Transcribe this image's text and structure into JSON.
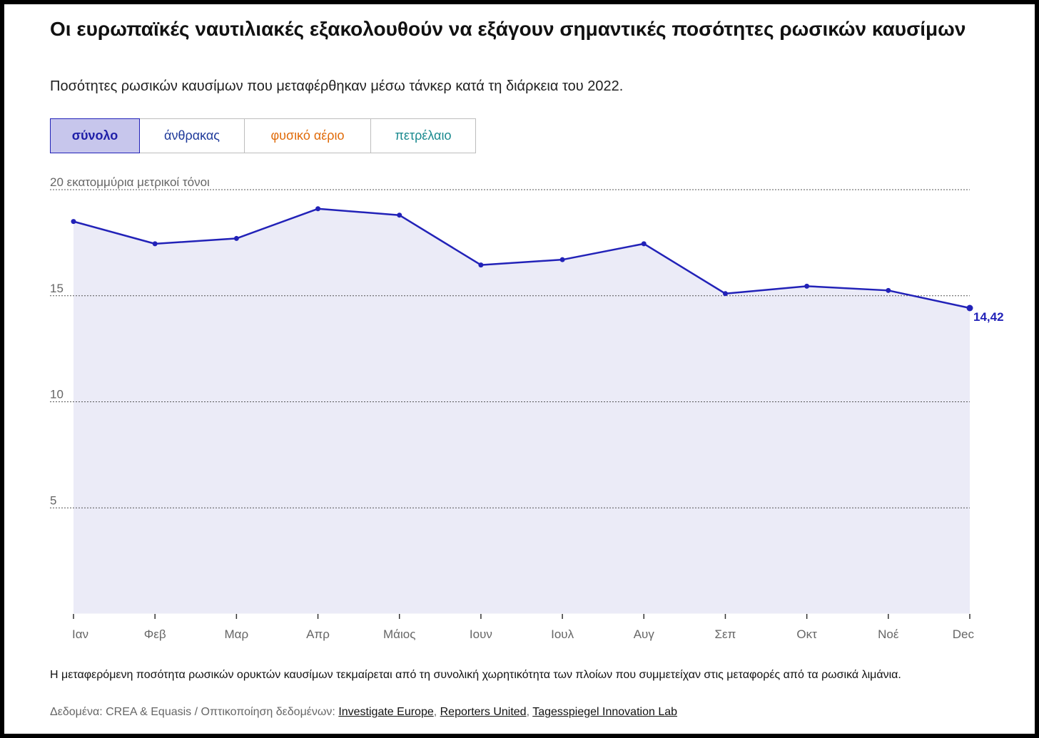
{
  "title": "Οι ευρωπαϊκές ναυτιλιακές εξακολουθούν να εξάγουν σημαντικές ποσότητες ρωσικών καυσίμων",
  "subtitle": "Ποσότητες ρωσικών καυσίμων που μεταφέρθηκαν μέσω τάνκερ κατά τη διάρκεια του 2022.",
  "tabs": [
    {
      "label": "σύνολο",
      "active": true
    },
    {
      "label": "άνθρακας",
      "active": false
    },
    {
      "label": "φυσικό αέριο",
      "active": false
    },
    {
      "label": "πετρέλαιο",
      "active": false
    }
  ],
  "colors": {
    "line": "#2222b8",
    "area": "#ebebf7",
    "gridline": "#555555",
    "tab_total": "#1f1fa8",
    "tab_coal": "#1f3a9a",
    "tab_gas": "#e06b0a",
    "tab_oil": "#1a8a8f"
  },
  "chart_data": {
    "type": "area",
    "ylabel": "20 εκατομμύρια μετρικοί τόνοι",
    "ylim": [
      0,
      20
    ],
    "yticks": [
      {
        "value": 20,
        "label": "20 εκατομμύρια μετρικοί τόνοι"
      },
      {
        "value": 15,
        "label": "15"
      },
      {
        "value": 10,
        "label": "10"
      },
      {
        "value": 5,
        "label": "5"
      }
    ],
    "grid": true,
    "categories": [
      "Ιαν",
      "Φεβ",
      "Μαρ",
      "Απρ",
      "Μάιος",
      "Ιουν",
      "Ιουλ",
      "Αυγ",
      "Σεπ",
      "Οκτ",
      "Νοέ",
      "Dec"
    ],
    "series": [
      {
        "values": [
          18.5,
          17.45,
          17.7,
          19.1,
          18.8,
          16.45,
          16.7,
          17.45,
          15.1,
          15.45,
          15.25,
          14.42
        ]
      }
    ],
    "end_label": "14,42"
  },
  "note": "Η μεταφερόμενη ποσότητα ρωσικών ορυκτών καυσίμων τεκμαίρεται από τη συνολική χωρητικότητα των πλοίων που συμμετείχαν στις μεταφορές από τα ρωσικά λιμάνια.",
  "source": {
    "prefix": "Δεδομένα: CREA & Equasis / Οπτικοποίηση δεδομένων: ",
    "links": [
      "Investigate Europe",
      "Reporters United",
      "Tagesspiegel Innovation Lab"
    ],
    "separator": ", "
  }
}
